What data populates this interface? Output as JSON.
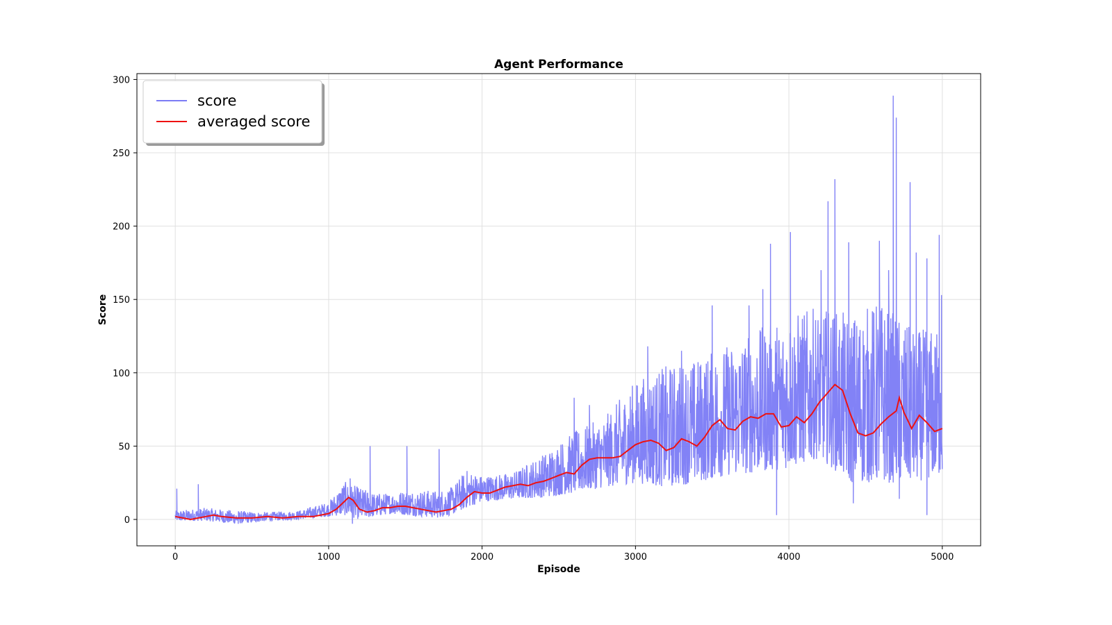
{
  "chart_data": {
    "type": "line",
    "title": "Agent Performance",
    "xlabel": "Episode",
    "ylabel": "Score",
    "xlim": [
      -250,
      5250
    ],
    "ylim": [
      -18,
      304
    ],
    "x_ticks": [
      0,
      1000,
      2000,
      3000,
      4000,
      5000
    ],
    "x_tick_labels": [
      "0",
      "1000",
      "2000",
      "3000",
      "4000",
      "5000"
    ],
    "y_ticks": [
      0,
      50,
      100,
      150,
      200,
      250,
      300
    ],
    "y_tick_labels": [
      "0",
      "50",
      "100",
      "150",
      "200",
      "250",
      "300"
    ],
    "grid": true,
    "legend_position": "top-left",
    "colors": {
      "score": "#7b7bf5",
      "averaged": "#ee1111"
    },
    "series": [
      {
        "name": "score",
        "style": "noisy-envelope",
        "envelope": {
          "x": [
            0,
            200,
            400,
            600,
            800,
            1000,
            1100,
            1200,
            1300,
            1400,
            1500,
            1600,
            1700,
            1800,
            1900,
            2000,
            2200,
            2400,
            2600,
            2800,
            3000,
            3200,
            3400,
            3600,
            3800,
            4000,
            4200,
            4400,
            4600,
            4800,
            5000
          ],
          "low": [
            -1,
            -1,
            -3,
            -1,
            0,
            2,
            3,
            0,
            2,
            4,
            3,
            2,
            1,
            3,
            8,
            12,
            14,
            15,
            18,
            22,
            25,
            22,
            25,
            30,
            32,
            35,
            42,
            25,
            25,
            25,
            30
          ],
          "high": [
            6,
            8,
            6,
            5,
            6,
            12,
            26,
            22,
            18,
            18,
            20,
            20,
            20,
            22,
            34,
            30,
            32,
            45,
            60,
            70,
            95,
            105,
            110,
            120,
            130,
            140,
            145,
            140,
            150,
            130,
            130
          ]
        },
        "spikes": [
          {
            "x": 10,
            "y": 21
          },
          {
            "x": 150,
            "y": 24
          },
          {
            "x": 1140,
            "y": 28
          },
          {
            "x": 1270,
            "y": 50
          },
          {
            "x": 1510,
            "y": 50
          },
          {
            "x": 1720,
            "y": 48
          },
          {
            "x": 2600,
            "y": 83
          },
          {
            "x": 2700,
            "y": 78
          },
          {
            "x": 3080,
            "y": 118
          },
          {
            "x": 3300,
            "y": 115
          },
          {
            "x": 3500,
            "y": 146
          },
          {
            "x": 3740,
            "y": 146
          },
          {
            "x": 3830,
            "y": 157
          },
          {
            "x": 3880,
            "y": 188
          },
          {
            "x": 4010,
            "y": 196
          },
          {
            "x": 4210,
            "y": 170
          },
          {
            "x": 4255,
            "y": 217
          },
          {
            "x": 4300,
            "y": 232
          },
          {
            "x": 4390,
            "y": 189
          },
          {
            "x": 4590,
            "y": 190
          },
          {
            "x": 4650,
            "y": 170
          },
          {
            "x": 4680,
            "y": 289
          },
          {
            "x": 4700,
            "y": 274
          },
          {
            "x": 4790,
            "y": 230
          },
          {
            "x": 4830,
            "y": 182
          },
          {
            "x": 4900,
            "y": 178
          },
          {
            "x": 4980,
            "y": 194
          },
          {
            "x": 4995,
            "y": 153
          }
        ],
        "dips": [
          {
            "x": 410,
            "y": -3
          },
          {
            "x": 1155,
            "y": -3
          },
          {
            "x": 3920,
            "y": 3
          },
          {
            "x": 4420,
            "y": 11
          },
          {
            "x": 4720,
            "y": 14
          },
          {
            "x": 4900,
            "y": 3
          }
        ]
      },
      {
        "name": "averaged score",
        "x": [
          0,
          50,
          100,
          150,
          200,
          250,
          300,
          400,
          500,
          600,
          700,
          800,
          900,
          1000,
          1050,
          1100,
          1130,
          1160,
          1200,
          1250,
          1300,
          1350,
          1400,
          1450,
          1500,
          1550,
          1600,
          1650,
          1700,
          1750,
          1800,
          1850,
          1900,
          1950,
          2000,
          2050,
          2100,
          2150,
          2200,
          2250,
          2300,
          2350,
          2400,
          2450,
          2500,
          2550,
          2600,
          2650,
          2700,
          2750,
          2800,
          2850,
          2900,
          2950,
          3000,
          3050,
          3100,
          3150,
          3200,
          3250,
          3300,
          3350,
          3400,
          3450,
          3500,
          3550,
          3600,
          3650,
          3700,
          3750,
          3800,
          3850,
          3900,
          3950,
          4000,
          4050,
          4100,
          4150,
          4200,
          4250,
          4300,
          4350,
          4400,
          4450,
          4500,
          4550,
          4600,
          4650,
          4700,
          4720,
          4750,
          4800,
          4850,
          4900,
          4950,
          5000
        ],
        "y": [
          2,
          1,
          0,
          1,
          2,
          3,
          2,
          1,
          1,
          2,
          1,
          2,
          2,
          4,
          7,
          12,
          15,
          13,
          7,
          5,
          6,
          8,
          8,
          9,
          9,
          8,
          7,
          6,
          5,
          6,
          7,
          10,
          15,
          19,
          18,
          18,
          20,
          22,
          23,
          24,
          23,
          25,
          26,
          28,
          30,
          32,
          31,
          37,
          41,
          42,
          42,
          42,
          43,
          47,
          51,
          53,
          54,
          52,
          47,
          49,
          55,
          53,
          50,
          56,
          64,
          68,
          62,
          61,
          67,
          70,
          69,
          72,
          72,
          63,
          64,
          70,
          66,
          72,
          80,
          86,
          92,
          88,
          72,
          59,
          57,
          59,
          65,
          70,
          74,
          83,
          73,
          62,
          71,
          66,
          60,
          62
        ]
      }
    ]
  }
}
